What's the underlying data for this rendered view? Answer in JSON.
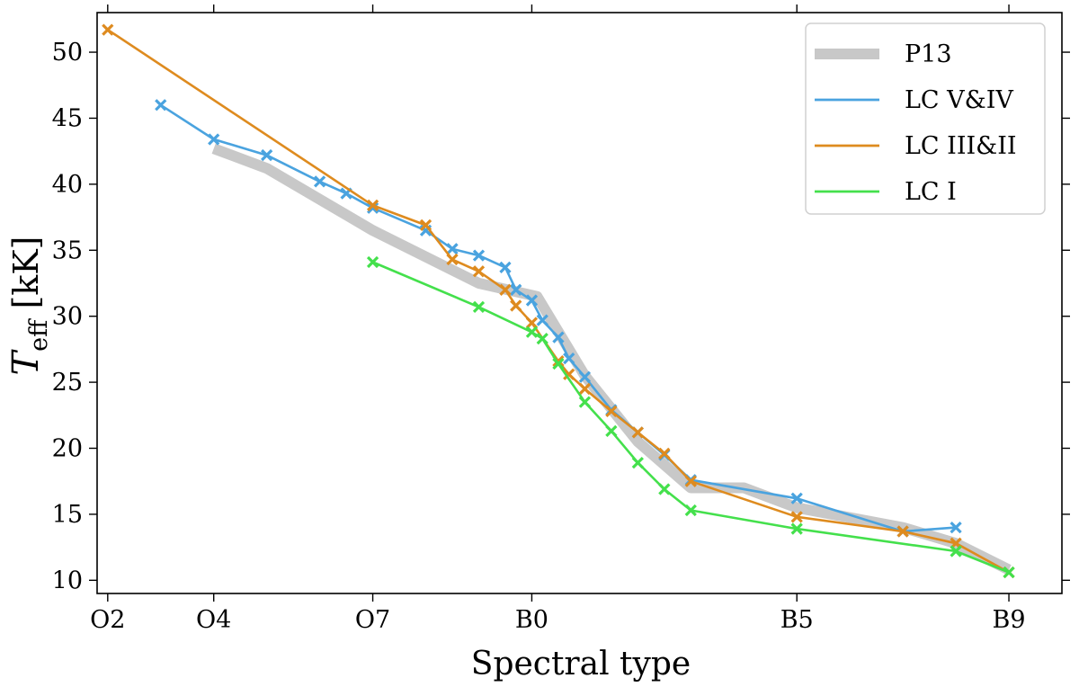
{
  "chart_data": {
    "type": "line",
    "title": "",
    "xlabel": "Spectral type",
    "ylabel": "T_eff [kK]",
    "ylabel_main": "T",
    "ylabel_sub": "eff",
    "ylabel_unit": " [kK]",
    "xlim": [
      1.8,
      20.0
    ],
    "ylim": [
      9,
      53
    ],
    "x_ticks": [
      {
        "value": 2,
        "label": "O2"
      },
      {
        "value": 4,
        "label": "O4"
      },
      {
        "value": 7,
        "label": "O7"
      },
      {
        "value": 10,
        "label": "B0"
      },
      {
        "value": 15,
        "label": "B5"
      },
      {
        "value": 19,
        "label": "B9"
      }
    ],
    "y_ticks": [
      10,
      15,
      20,
      25,
      30,
      35,
      40,
      45,
      50
    ],
    "legend_position": "top-right",
    "series": [
      {
        "name": "P13",
        "color": "#c8c8c8",
        "style": "band",
        "points": [
          [
            4.0,
            42.7
          ],
          [
            5.0,
            41.2
          ],
          [
            7.0,
            36.5
          ],
          [
            9.0,
            32.5
          ],
          [
            10.1,
            31.5
          ],
          [
            11.0,
            25.5
          ],
          [
            12.0,
            20.5
          ],
          [
            13.0,
            17.0
          ],
          [
            14.0,
            17.0
          ],
          [
            15.0,
            15.5
          ],
          [
            17.0,
            14.0
          ],
          [
            18.0,
            12.8
          ],
          [
            19.0,
            10.8
          ]
        ]
      },
      {
        "name": "LC V&IV",
        "color": "#4aa3df",
        "style": "line-marker",
        "points": [
          [
            3.0,
            46.0
          ],
          [
            4.0,
            43.4
          ],
          [
            5.0,
            42.2
          ],
          [
            6.0,
            40.2
          ],
          [
            6.5,
            39.3
          ],
          [
            7.0,
            38.2
          ],
          [
            8.0,
            36.5
          ],
          [
            8.5,
            35.1
          ],
          [
            9.0,
            34.6
          ],
          [
            9.5,
            33.7
          ],
          [
            9.7,
            32.0
          ],
          [
            10.0,
            31.2
          ],
          [
            10.2,
            29.7
          ],
          [
            10.5,
            28.4
          ],
          [
            10.7,
            26.8
          ],
          [
            11.0,
            25.4
          ],
          [
            11.5,
            22.9
          ],
          [
            12.0,
            21.2
          ],
          [
            12.5,
            19.5
          ],
          [
            13.0,
            17.6
          ],
          [
            15.0,
            16.2
          ],
          [
            17.0,
            13.7
          ],
          [
            18.0,
            14.0
          ]
        ]
      },
      {
        "name": "LC III&II",
        "color": "#de8b1f",
        "style": "line-marker",
        "points": [
          [
            2.0,
            51.7
          ],
          [
            7.0,
            38.4
          ],
          [
            8.0,
            36.9
          ],
          [
            8.5,
            34.3
          ],
          [
            9.0,
            33.4
          ],
          [
            9.5,
            32.0
          ],
          [
            9.7,
            30.8
          ],
          [
            10.0,
            29.5
          ],
          [
            10.5,
            26.6
          ],
          [
            10.7,
            25.6
          ],
          [
            11.0,
            24.5
          ],
          [
            11.5,
            22.8
          ],
          [
            12.0,
            21.2
          ],
          [
            12.5,
            19.6
          ],
          [
            13.0,
            17.5
          ],
          [
            15.0,
            14.8
          ],
          [
            17.0,
            13.7
          ],
          [
            18.0,
            12.8
          ],
          [
            19.0,
            10.6
          ]
        ]
      },
      {
        "name": "LC I",
        "color": "#44e04c",
        "style": "line-marker",
        "points": [
          [
            7.0,
            34.1
          ],
          [
            9.0,
            30.7
          ],
          [
            10.0,
            28.8
          ],
          [
            10.2,
            28.3
          ],
          [
            10.5,
            26.4
          ],
          [
            11.0,
            23.5
          ],
          [
            11.5,
            21.3
          ],
          [
            12.0,
            18.9
          ],
          [
            12.5,
            16.9
          ],
          [
            13.0,
            15.3
          ],
          [
            15.0,
            13.9
          ],
          [
            18.0,
            12.2
          ],
          [
            19.0,
            10.6
          ]
        ]
      }
    ]
  }
}
